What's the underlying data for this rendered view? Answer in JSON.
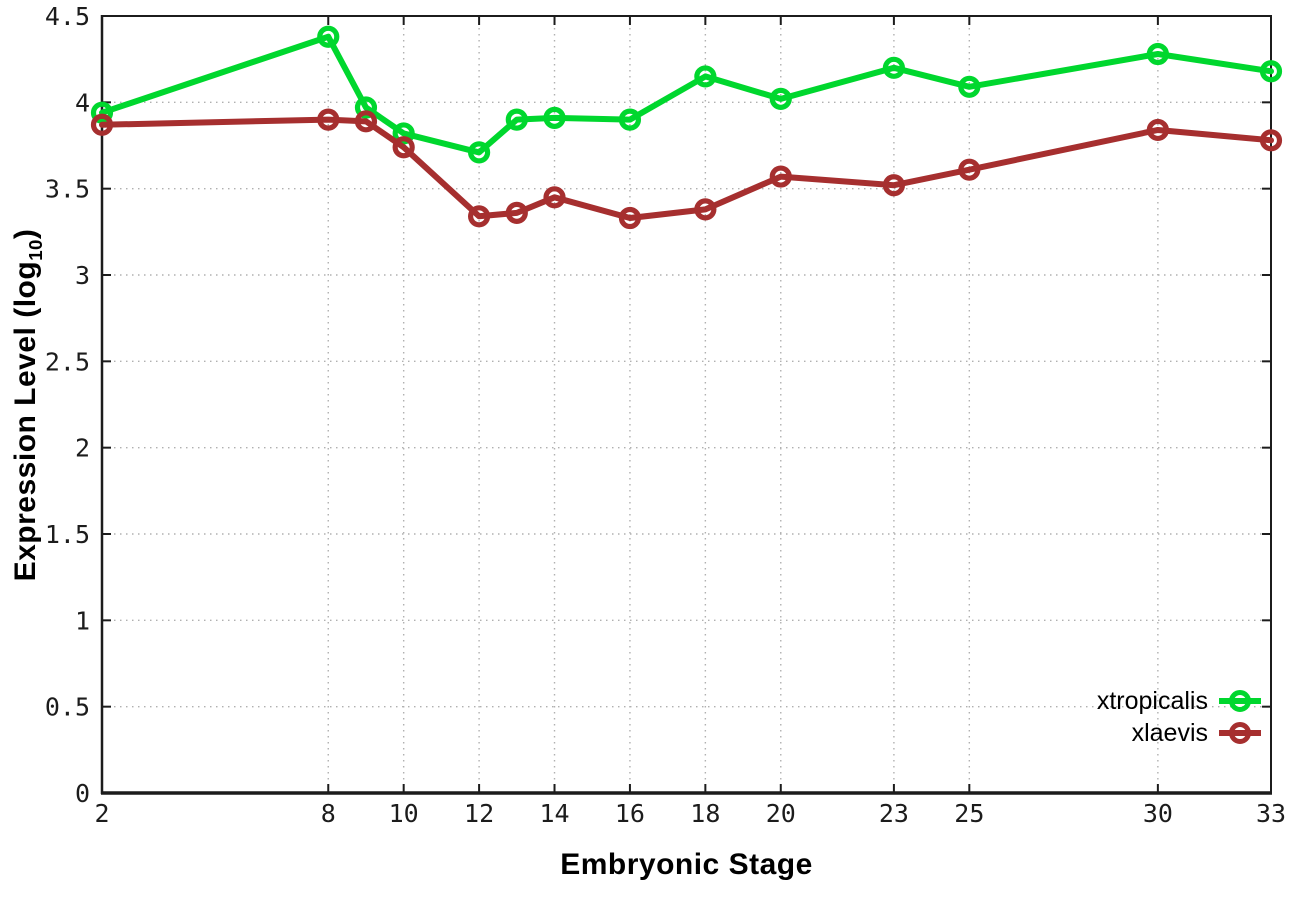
{
  "figure": {
    "background": "#ffffff"
  },
  "chart_data": {
    "type": "line",
    "title": "",
    "xlabel": "Embryonic Stage",
    "ylabel": "Expression Level (log10)",
    "ylabel_parts": {
      "prefix": "Expression Level (log",
      "sub": "10",
      "suffix": ")"
    },
    "x": [
      2,
      8,
      9,
      10,
      12,
      13,
      14,
      16,
      18,
      20,
      23,
      25,
      30,
      33
    ],
    "series": [
      {
        "name": "xtropicalis",
        "color": "#00D72E",
        "values": [
          3.94,
          4.38,
          3.97,
          3.82,
          3.71,
          3.9,
          3.91,
          3.9,
          4.15,
          4.02,
          4.2,
          4.09,
          4.28,
          4.18
        ]
      },
      {
        "name": "xlaevis",
        "color": "#A62F2F",
        "values": [
          3.87,
          3.9,
          3.89,
          3.74,
          3.34,
          3.36,
          3.45,
          3.33,
          3.38,
          3.57,
          3.52,
          3.61,
          3.84,
          3.78
        ]
      }
    ],
    "xlim": [
      2,
      33
    ],
    "ylim": [
      0,
      4.5
    ],
    "x_ticks": [
      2,
      8,
      10,
      12,
      14,
      16,
      18,
      20,
      23,
      25,
      30,
      33
    ],
    "x_tick_labels": [
      "2",
      "8",
      "10",
      "12",
      "14",
      "16",
      "18",
      "20",
      "23",
      "25",
      "30",
      "33"
    ],
    "y_ticks": [
      0,
      0.5,
      1,
      1.5,
      2,
      2.5,
      3,
      3.5,
      4,
      4.5
    ],
    "y_tick_labels": [
      "0",
      "0.5",
      "1",
      "1.5",
      "2",
      "2.5",
      "3",
      "3.5",
      "4",
      "4.5"
    ],
    "grid": true,
    "legend_position": "bottom-right",
    "marker": "open-circle"
  },
  "style": {
    "border_color": "#1c1c1c",
    "grid_color": "#b0b0b0",
    "tick_label_color": "#1c1c1c"
  }
}
